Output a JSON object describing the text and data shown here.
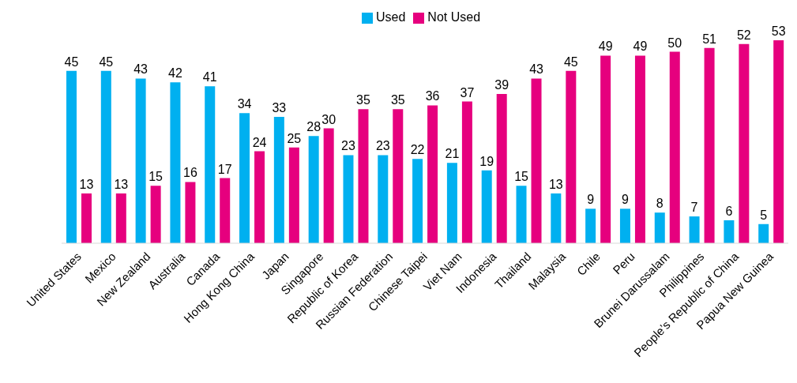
{
  "chart_data": {
    "type": "bar",
    "categories": [
      "United States",
      "Mexico",
      "New Zealand",
      "Australia",
      "Canada",
      "Hong Kong China",
      "Japan",
      "Singapore",
      "Republic of Korea",
      "Russian Federation",
      "Chinese Taipei",
      "Viet Nam",
      "Indonesia",
      "Thailand",
      "Malaysia",
      "Chile",
      "Peru",
      "Brunei Darussalam",
      "Philippines",
      "People’s Republic of China",
      "Papua New Guinea"
    ],
    "series": [
      {
        "name": "Used",
        "color": "#00b0f0",
        "values": [
          45,
          45,
          43,
          42,
          41,
          34,
          33,
          28,
          23,
          23,
          22,
          21,
          19,
          15,
          13,
          9,
          9,
          8,
          7,
          6,
          5
        ]
      },
      {
        "name": "Not Used",
        "color": "#e6007e",
        "values": [
          13,
          13,
          15,
          16,
          17,
          24,
          25,
          30,
          35,
          35,
          36,
          37,
          39,
          43,
          45,
          49,
          49,
          50,
          51,
          52,
          53
        ]
      }
    ],
    "data_labels": true,
    "legend": "top",
    "grid": false
  }
}
